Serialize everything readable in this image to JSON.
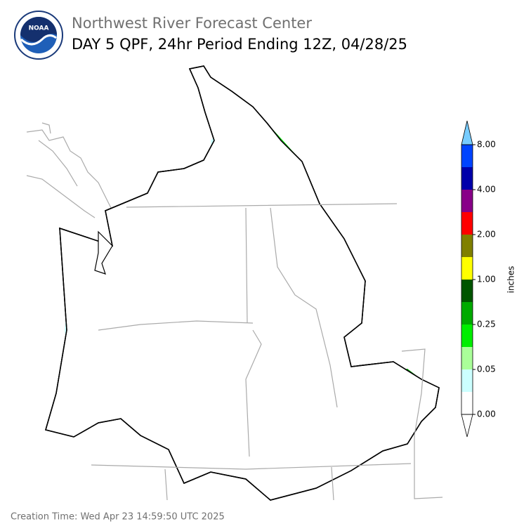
{
  "header": {
    "logo_text": "NOAA",
    "organization": "Northwest River Forecast Center",
    "title": "DAY 5 QPF, 24hr Period Ending 12Z, 04/28/25"
  },
  "colorbar": {
    "label": "inches",
    "colors": [
      "#ffffff",
      "#ccffff",
      "#aaff99",
      "#00ee00",
      "#00aa00",
      "#005500",
      "#ffff00",
      "#808000",
      "#ff0000",
      "#880088",
      "#0000aa",
      "#0044ff"
    ],
    "under_color": "#ffffff",
    "over_color": "#77ccff",
    "ticks": [
      {
        "value": 0,
        "label": "0.00"
      },
      {
        "value": 0.05,
        "label": "0.05"
      },
      {
        "value": 0.25,
        "label": "0.25"
      },
      {
        "value": 1,
        "label": "1.00"
      },
      {
        "value": 2,
        "label": "2.00"
      },
      {
        "value": 4,
        "label": "4.00"
      },
      {
        "value": 8,
        "label": "8.00"
      }
    ]
  },
  "footer": {
    "creation_time": "Creation Time: Wed Apr 23 14:59:50 UTC 2025"
  }
}
